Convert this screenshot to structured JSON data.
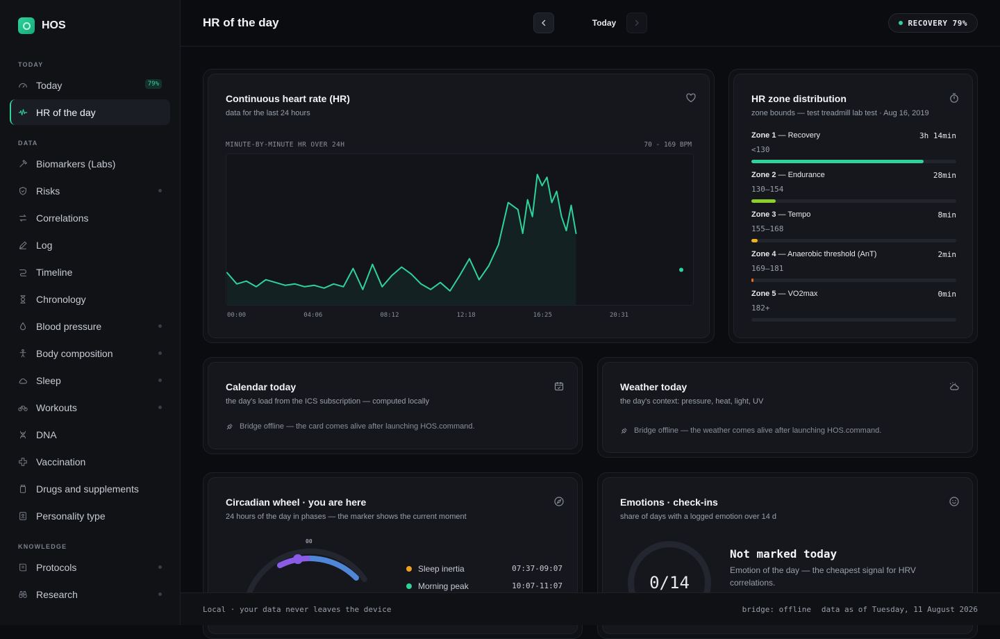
{
  "app": {
    "name": "HOS"
  },
  "sidebar": {
    "sections": {
      "today": "TODAY",
      "data": "DATA",
      "knowledge": "KNOWLEDGE"
    },
    "today_items": [
      {
        "label": "Today",
        "icon": "gauge-icon",
        "badge": "79%"
      },
      {
        "label": "HR of the day",
        "icon": "heart-rate-icon",
        "active": true
      }
    ],
    "data_items": [
      {
        "label": "Biomarkers (Labs)",
        "icon": "pipette-icon"
      },
      {
        "label": "Risks",
        "icon": "shield-icon",
        "dot": true
      },
      {
        "label": "Correlations",
        "icon": "arrows-icon"
      },
      {
        "label": "Log",
        "icon": "pencil-icon"
      },
      {
        "label": "Timeline",
        "icon": "timeline-icon"
      },
      {
        "label": "Chronology",
        "icon": "hourglass-icon"
      },
      {
        "label": "Blood pressure",
        "icon": "droplet-icon",
        "dot": true
      },
      {
        "label": "Body composition",
        "icon": "body-icon",
        "dot": true
      },
      {
        "label": "Sleep",
        "icon": "cloud-icon",
        "dot": true
      },
      {
        "label": "Workouts",
        "icon": "bike-icon",
        "dot": true
      },
      {
        "label": "DNA",
        "icon": "dna-icon"
      },
      {
        "label": "Vaccination",
        "icon": "cross-icon"
      },
      {
        "label": "Drugs and supplements",
        "icon": "pill-bottle-icon"
      },
      {
        "label": "Personality type",
        "icon": "id-card-icon"
      }
    ],
    "knowledge_items": [
      {
        "label": "Protocols",
        "icon": "book-icon",
        "dot": true
      },
      {
        "label": "Research",
        "icon": "binoculars-icon",
        "dot": true
      }
    ]
  },
  "header": {
    "title": "HR of the day",
    "date_label": "Today",
    "recovery": "RECOVERY 79%",
    "accent": "#2fd39a"
  },
  "hr_card": {
    "title": "Continuous heart rate (HR)",
    "subtitle": "data for the last 24 hours",
    "chart_caption": "MINUTE-BY-MINUTE HR OVER 24H",
    "range_label": "70 - 169 BPM",
    "icon": "heart-icon"
  },
  "chart_data": {
    "type": "line",
    "title": "MINUTE-BY-MINUTE HR OVER 24H",
    "xlabel": "",
    "ylabel": "",
    "ylim": [
      70,
      169
    ],
    "x_tick_labels": [
      "00:00",
      "04:06",
      "08:12",
      "12:18",
      "16:25",
      "20:31"
    ],
    "x": [
      "00:00",
      "00:30",
      "01:00",
      "01:30",
      "02:00",
      "02:30",
      "03:00",
      "03:30",
      "04:00",
      "04:30",
      "05:00",
      "05:30",
      "06:00",
      "06:30",
      "07:00",
      "07:30",
      "08:00",
      "08:30",
      "09:00",
      "09:30",
      "10:00",
      "10:30",
      "11:00",
      "11:30",
      "12:00",
      "12:30",
      "13:00",
      "13:30",
      "14:00",
      "14:30",
      "15:00",
      "15:15",
      "15:30",
      "15:45",
      "16:00",
      "16:15",
      "16:30",
      "16:45",
      "17:00",
      "17:15",
      "17:30",
      "17:45",
      "18:00"
    ],
    "series": [
      {
        "values": [
          90,
          82,
          84,
          80,
          85,
          83,
          81,
          82,
          80,
          81,
          79,
          82,
          80,
          93,
          78,
          96,
          80,
          88,
          94,
          89,
          82,
          78,
          83,
          77,
          88,
          100,
          85,
          95,
          110,
          140,
          135,
          118,
          142,
          130,
          160,
          152,
          158,
          140,
          148,
          130,
          120,
          138,
          118
        ]
      }
    ],
    "color": "#2fd39a",
    "current_value_marker": 92
  },
  "zones": {
    "title": "HR zone distribution",
    "subtitle": "zone bounds — test treadmill lab test · Aug 16, 2019",
    "icon": "stopwatch-icon",
    "items": [
      {
        "zone": "Zone 1",
        "name": "— Recovery",
        "duration": "3h 14min",
        "range": "<130",
        "fraction": 0.84,
        "color": "#2fd39a"
      },
      {
        "zone": "Zone 2",
        "name": "— Endurance",
        "duration": "28min",
        "range": "130–154",
        "fraction": 0.12,
        "color": "#8bd12a"
      },
      {
        "zone": "Zone 3",
        "name": "— Tempo",
        "duration": "8min",
        "range": "155–168",
        "fraction": 0.03,
        "color": "#f0b21a"
      },
      {
        "zone": "Zone 4",
        "name": "— Anaerobic threshold (AnT)",
        "duration": "2min",
        "range": "169–181",
        "fraction": 0.01,
        "color": "#f06a1a"
      },
      {
        "zone": "Zone 5",
        "name": "— VO2max",
        "duration": "0min",
        "range": "182+",
        "fraction": 0,
        "color": "#e0403a"
      }
    ]
  },
  "calendar": {
    "title": "Calendar today",
    "subtitle": "the day's load from the ICS subscription — computed locally",
    "message": "Bridge offline — the card comes alive after launching HOS.command.",
    "icon": "calendar-icon"
  },
  "weather": {
    "title": "Weather today",
    "subtitle": "the day's context: pressure, heat, light, UV",
    "message": "Bridge offline — the weather comes alive after launching HOS.command.",
    "icon": "sun-cloud-icon"
  },
  "circadian": {
    "title": "Circadian wheel · you are here",
    "subtitle": "24 hours of the day in phases — the marker shows the current moment",
    "wheel_label": "00",
    "icon": "compass-icon",
    "phases": [
      {
        "name": "Sleep inertia",
        "time": "07:37-09:07",
        "color": "#f0a020"
      },
      {
        "name": "Morning peak",
        "time": "10:07-11:07",
        "color": "#2fd39a"
      }
    ]
  },
  "emotions": {
    "title": "Emotions · check-ins",
    "subtitle": "share of days with a logged emotion over 14 d",
    "count": "0/14",
    "heading": "Not marked today",
    "text": "Emotion of the day — the cheapest signal for HRV correlations.",
    "icon": "smile-icon"
  },
  "footer": {
    "left": "Local · your data never leaves the device",
    "bridge": "bridge: offline",
    "asof": "data as of Tuesday, 11 August 2026"
  }
}
